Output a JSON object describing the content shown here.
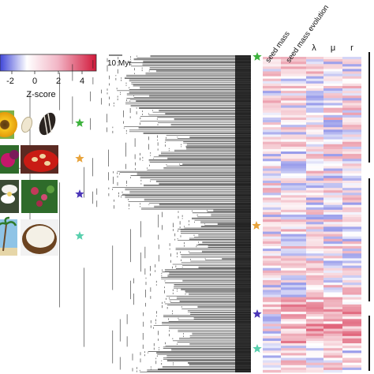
{
  "colorbar": {
    "label": "Z-score",
    "ticks": [
      "-2",
      "0",
      "2",
      "4"
    ],
    "colors": {
      "low": "#3f46d8",
      "mid": "#ffffff",
      "high": "#d1183a"
    }
  },
  "scale_bar": {
    "label": "10 Myr"
  },
  "heatmap": {
    "columns": [
      {
        "label": "seed mass"
      },
      {
        "label": "seed mass evolution"
      },
      {
        "label": "λ"
      },
      {
        "label": "μ"
      },
      {
        "label": "r"
      }
    ]
  },
  "markers": [
    {
      "shape": "star",
      "color": "#3db23d"
    },
    {
      "shape": "star",
      "color": "#e8a33a"
    },
    {
      "shape": "star",
      "color": "#4b36b8"
    },
    {
      "shape": "star",
      "color": "#58cfad"
    }
  ],
  "photos": [
    {
      "subject": "sunflower and seeds"
    },
    {
      "subject": "red fruit with seeds"
    },
    {
      "subject": "white flower"
    },
    {
      "subject": "coconut palm and coconut"
    }
  ]
}
